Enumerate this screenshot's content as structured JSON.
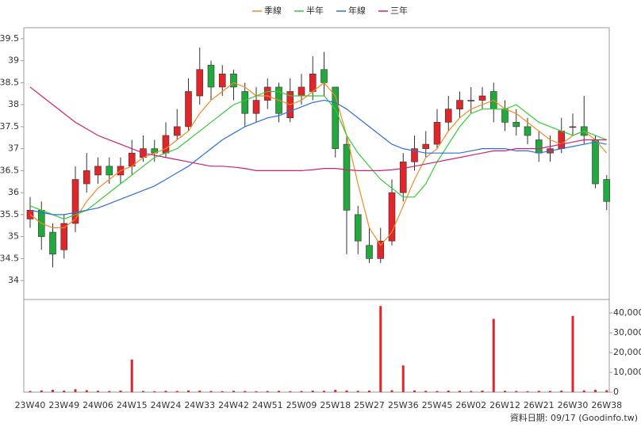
{
  "chart_data": {
    "type": "candlestick",
    "categories": [
      "23W40",
      null,
      null,
      "23W49",
      null,
      null,
      "24W06",
      null,
      null,
      "24W15",
      null,
      null,
      "24W24",
      null,
      null,
      "24W33",
      null,
      null,
      "24W42",
      null,
      null,
      "24W51",
      null,
      null,
      "25W09",
      null,
      null,
      "25W18",
      null,
      null,
      "25W27",
      null,
      null,
      "25W36",
      null,
      null,
      "25W45",
      null,
      null,
      "26W02",
      null,
      null,
      "26W12",
      null,
      null,
      "26W21",
      null,
      null,
      "26W30",
      null,
      null,
      "26W38"
    ],
    "open": [
      35.4,
      35.6,
      35.1,
      34.7,
      35.3,
      36.2,
      36.4,
      36.6,
      36.4,
      36.6,
      36.8,
      37.0,
      36.9,
      37.3,
      37.5,
      38.2,
      38.9,
      38.4,
      38.7,
      38.3,
      37.8,
      38.1,
      38.4,
      37.7,
      38.2,
      38.3,
      38.8,
      38.4,
      37.1,
      35.5,
      34.8,
      34.5,
      34.9,
      36.0,
      36.7,
      37.0,
      37.1,
      37.6,
      37.9,
      38.1,
      38.1,
      38.3,
      37.9,
      37.6,
      37.5,
      37.2,
      36.9,
      37.0,
      37.5,
      37.5,
      37.2,
      36.3
    ],
    "high": [
      35.9,
      35.8,
      35.3,
      35.5,
      36.6,
      36.9,
      36.8,
      36.8,
      36.8,
      37.2,
      37.3,
      37.2,
      37.6,
      37.9,
      38.6,
      39.3,
      39.0,
      38.9,
      38.8,
      38.5,
      38.4,
      38.6,
      38.5,
      38.6,
      38.7,
      39.1,
      39.2,
      38.4,
      37.3,
      35.7,
      35.2,
      35.2,
      36.3,
      36.9,
      37.3,
      37.4,
      37.9,
      38.2,
      38.3,
      38.4,
      38.4,
      38.5,
      38.1,
      37.9,
      37.7,
      37.4,
      37.3,
      37.7,
      37.8,
      38.2,
      37.3,
      36.4
    ],
    "low": [
      35.2,
      34.7,
      34.3,
      34.5,
      35.1,
      36.0,
      36.2,
      36.2,
      36.2,
      36.4,
      36.7,
      36.7,
      36.8,
      37.2,
      37.4,
      38.0,
      38.1,
      38.2,
      38.1,
      37.5,
      37.6,
      37.9,
      37.6,
      37.6,
      38.0,
      38.1,
      38.2,
      36.8,
      34.6,
      34.6,
      34.4,
      34.4,
      34.8,
      35.8,
      36.5,
      36.8,
      37.0,
      37.4,
      37.7,
      37.8,
      37.9,
      37.6,
      37.4,
      37.3,
      37.1,
      36.7,
      36.7,
      36.9,
      37.3,
      37.1,
      36.1,
      35.6
    ],
    "close": [
      35.6,
      35.0,
      34.6,
      35.3,
      36.3,
      36.5,
      36.6,
      36.4,
      36.6,
      36.9,
      37.0,
      36.9,
      37.3,
      37.5,
      38.3,
      38.8,
      38.4,
      38.7,
      38.4,
      37.8,
      38.1,
      38.4,
      37.8,
      38.3,
      38.4,
      38.7,
      38.5,
      37.0,
      35.6,
      34.9,
      34.5,
      34.9,
      36.0,
      36.7,
      37.0,
      37.1,
      37.6,
      37.9,
      38.1,
      38.1,
      38.2,
      37.9,
      37.6,
      37.5,
      37.3,
      36.9,
      37.0,
      37.4,
      37.5,
      37.3,
      36.2,
      35.8
    ],
    "up_color": "#e0252b",
    "down_color": "#22a83c",
    "series": [
      {
        "name": "季線",
        "color": "#f08a24",
        "values": [
          35.5,
          35.3,
          35.2,
          35.2,
          35.4,
          35.8,
          36.1,
          36.3,
          36.5,
          36.6,
          36.8,
          36.9,
          37.0,
          37.2,
          37.4,
          37.8,
          38.1,
          38.3,
          38.5,
          38.4,
          38.2,
          38.2,
          38.1,
          38.0,
          38.1,
          38.3,
          38.5,
          38.2,
          37.3,
          36.2,
          35.2,
          34.8,
          35.1,
          35.7,
          36.3,
          36.8,
          37.0,
          37.4,
          37.7,
          37.9,
          38.0,
          38.1,
          37.9,
          37.8,
          37.6,
          37.4,
          37.2,
          37.1,
          37.3,
          37.4,
          37.2,
          36.9
        ]
      },
      {
        "name": "半年",
        "color": "#33cc33",
        "values": [
          35.7,
          35.6,
          35.5,
          35.4,
          35.5,
          35.6,
          35.8,
          36.0,
          36.2,
          36.4,
          36.6,
          36.8,
          36.9,
          37.0,
          37.2,
          37.4,
          37.6,
          37.8,
          38.0,
          38.1,
          38.2,
          38.3,
          38.3,
          38.2,
          38.2,
          38.2,
          38.2,
          37.9,
          37.3,
          36.9,
          36.6,
          36.3,
          36.1,
          35.9,
          35.9,
          36.2,
          36.7,
          37.1,
          37.5,
          37.8,
          37.9,
          37.9,
          37.9,
          38.0,
          37.8,
          37.6,
          37.5,
          37.4,
          37.3,
          37.4,
          37.3,
          37.2
        ]
      },
      {
        "name": "年線",
        "color": "#2f6fd6",
        "values": [
          35.6,
          35.55,
          35.5,
          35.5,
          35.55,
          35.6,
          35.65,
          35.75,
          35.85,
          35.95,
          36.05,
          36.15,
          36.3,
          36.45,
          36.6,
          36.8,
          37.0,
          37.2,
          37.35,
          37.5,
          37.6,
          37.7,
          37.75,
          37.85,
          37.95,
          38.05,
          38.1,
          38.05,
          37.9,
          37.7,
          37.5,
          37.3,
          37.1,
          37.0,
          36.95,
          36.9,
          36.9,
          36.9,
          36.9,
          36.95,
          37.0,
          37.0,
          37.0,
          36.95,
          36.95,
          36.9,
          36.95,
          37.0,
          37.05,
          37.1,
          37.15,
          37.1
        ]
      },
      {
        "name": "三年",
        "color": "#d0206e",
        "values": [
          38.4,
          38.2,
          38.0,
          37.8,
          37.6,
          37.45,
          37.3,
          37.2,
          37.1,
          37.0,
          36.9,
          36.85,
          36.8,
          36.75,
          36.7,
          36.65,
          36.6,
          36.6,
          36.58,
          36.55,
          36.5,
          36.5,
          36.5,
          36.5,
          36.5,
          36.52,
          36.55,
          36.55,
          36.52,
          36.5,
          36.5,
          36.5,
          36.52,
          36.55,
          36.6,
          36.65,
          36.7,
          36.75,
          36.8,
          36.85,
          36.9,
          36.95,
          36.95,
          37.0,
          37.0,
          37.0,
          37.05,
          37.1,
          37.15,
          37.2,
          37.2,
          37.2
        ]
      }
    ],
    "volume": {
      "color": "#e0252b",
      "axis": "y2",
      "values": [
        600,
        900,
        1200,
        800,
        1500,
        1000,
        700,
        600,
        800,
        16500,
        600,
        500,
        700,
        600,
        900,
        800,
        600,
        500,
        700,
        600,
        500,
        600,
        700,
        500,
        600,
        800,
        700,
        1200,
        900,
        700,
        800,
        43500,
        1000,
        13500,
        900,
        700,
        600,
        800,
        700,
        600,
        800,
        37000,
        700,
        600,
        500,
        700,
        600,
        800,
        38500,
        900,
        1200,
        1000
      ]
    },
    "ylim": [
      33.57,
      39.75
    ],
    "yticks": [
      34,
      34.5,
      35,
      35.5,
      36,
      36.5,
      37,
      37.5,
      38,
      38.5,
      39,
      39.5
    ],
    "y2lim": [
      0,
      44400
    ],
    "y2ticks": [
      0,
      {
        "value": 10000,
        "label": "10,000"
      },
      {
        "value": 20000,
        "label": "20,000"
      },
      {
        "value": 30000,
        "label": "30,000"
      },
      {
        "value": 40000,
        "label": "40,000"
      }
    ],
    "source": "資料日期: 09/17 (Goodinfo.tw)",
    "grid": false
  }
}
